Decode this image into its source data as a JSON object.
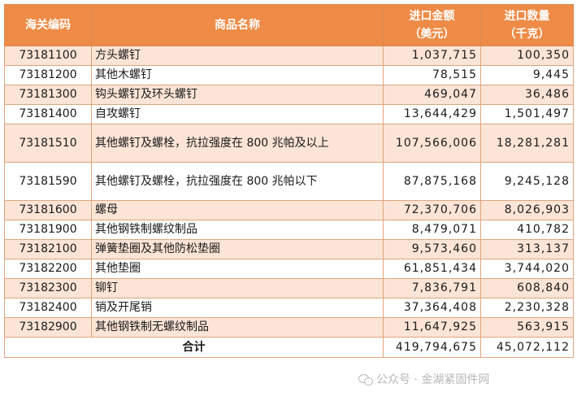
{
  "headers": {
    "code": "海关编码",
    "name": "商品名称",
    "value_line1": "进口金额",
    "value_line2": "（美元）",
    "qty_line1": "进口数量",
    "qty_line2": "（千克）"
  },
  "rows": [
    {
      "code": "73181100",
      "name": "方头螺钉",
      "value": "1,037,715",
      "qty": "100,350"
    },
    {
      "code": "73181200",
      "name": "其他木螺钉",
      "value": "78,515",
      "qty": "9,445"
    },
    {
      "code": "73181300",
      "name": "钩头螺钉及环头螺钉",
      "value": "469,047",
      "qty": "36,486"
    },
    {
      "code": "73181400",
      "name": "自攻螺钉",
      "value": "13,644,429",
      "qty": "1,501,497"
    },
    {
      "code": "73181510",
      "name": "其他螺钉及螺栓，抗拉强度在 800 兆帕及以上",
      "value": "107,566,006",
      "qty": "18,281,281"
    },
    {
      "code": "73181590",
      "name": "其他螺钉及螺栓，抗拉强度在 800 兆帕以下",
      "value": "87,875,168",
      "qty": "9,245,128"
    },
    {
      "code": "73181600",
      "name": "螺母",
      "value": "72,370,706",
      "qty": "8,026,903"
    },
    {
      "code": "73181900",
      "name": "其他钢铁制螺纹制品",
      "value": "8,479,071",
      "qty": "410,782"
    },
    {
      "code": "73182100",
      "name": "弹簧垫圈及其他防松垫圈",
      "value": "9,573,460",
      "qty": "313,137"
    },
    {
      "code": "73182200",
      "name": "其他垫圈",
      "value": "61,851,434",
      "qty": "3,744,020"
    },
    {
      "code": "73182300",
      "name": "铆钉",
      "value": "7,836,791",
      "qty": "608,840"
    },
    {
      "code": "73182400",
      "name": "销及开尾销",
      "value": "37,364,408",
      "qty": "2,230,328"
    },
    {
      "code": "73182900",
      "name": "其他钢铁制无螺纹制品",
      "value": "11,647,925",
      "qty": "563,915"
    }
  ],
  "total": {
    "label": "合计",
    "value": "419,794,675",
    "qty": "45,072,112"
  },
  "watermark": {
    "text": "公众号 · 金湖紧固件网",
    "icon": "wechat-icon"
  }
}
